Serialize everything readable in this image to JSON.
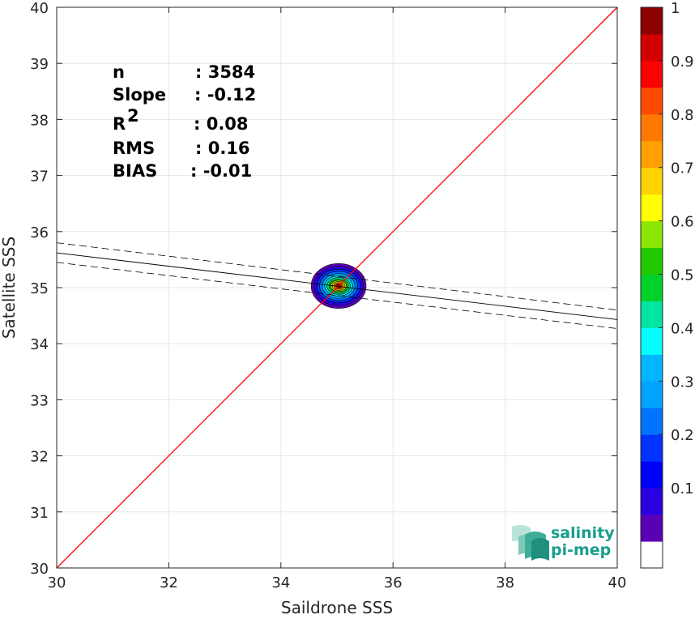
{
  "chart_data": {
    "type": "scatter",
    "xlabel": "Saildrone SSS",
    "ylabel": "Satellite SSS",
    "xlim": [
      30,
      40
    ],
    "ylim": [
      30,
      40
    ],
    "xticks": [
      "30",
      "32",
      "34",
      "36",
      "38",
      "40"
    ],
    "yticks": [
      "30",
      "31",
      "32",
      "33",
      "34",
      "35",
      "36",
      "37",
      "38",
      "39",
      "40"
    ],
    "grid": true,
    "stats": [
      {
        "label": "n",
        "value": ": 3584"
      },
      {
        "label": "Slope",
        "value": ": -0.12"
      },
      {
        "label": "R",
        "sup": "2",
        "value": ": 0.08"
      },
      {
        "label": "RMS",
        "value": ": 0.16"
      },
      {
        "label": "BIAS",
        "value": ": -0.01"
      }
    ],
    "identity_line": {
      "x": [
        30,
        40
      ],
      "y": [
        30,
        40
      ],
      "color": "#ff0000"
    },
    "regression_line": {
      "x": [
        30,
        40
      ],
      "y": [
        35.62,
        34.43
      ],
      "color": "#000000"
    },
    "confidence_upper": {
      "x": [
        30,
        40
      ],
      "y": [
        35.8,
        34.6
      ]
    },
    "confidence_lower": {
      "x": [
        30,
        40
      ],
      "y": [
        35.45,
        34.27
      ]
    },
    "density": {
      "center": [
        35.03,
        35.03
      ],
      "levels": [
        {
          "rx": 0.49,
          "ry": 0.4,
          "color": "#5a00b5"
        },
        {
          "rx": 0.44,
          "ry": 0.35,
          "color": "#2b00e0"
        },
        {
          "rx": 0.39,
          "ry": 0.3,
          "color": "#0033ff"
        },
        {
          "rx": 0.34,
          "ry": 0.26,
          "color": "#0073ff"
        },
        {
          "rx": 0.29,
          "ry": 0.22,
          "color": "#00b7ff"
        },
        {
          "rx": 0.25,
          "ry": 0.18,
          "color": "#00e4e0"
        },
        {
          "rx": 0.21,
          "ry": 0.15,
          "color": "#00d48a"
        },
        {
          "rx": 0.17,
          "ry": 0.12,
          "color": "#21c800"
        },
        {
          "rx": 0.14,
          "ry": 0.1,
          "color": "#b4e600"
        },
        {
          "rx": 0.11,
          "ry": 0.08,
          "color": "#ffd200"
        },
        {
          "rx": 0.08,
          "ry": 0.06,
          "color": "#ff6a00"
        },
        {
          "rx": 0.05,
          "ry": 0.04,
          "color": "#e10000"
        },
        {
          "rx": 0.025,
          "ry": 0.02,
          "color": "#8b0000"
        }
      ]
    },
    "colorbar": {
      "ticks": [
        "0.1",
        "0.2",
        "0.3",
        "0.4",
        "0.5",
        "0.6",
        "0.7",
        "0.8",
        "0.9",
        "1"
      ],
      "colors": [
        "#ffffff",
        "#5a00b5",
        "#2b00e0",
        "#0000ff",
        "#0033ff",
        "#0073ff",
        "#00a3ff",
        "#00b7ff",
        "#00ffff",
        "#00e6a0",
        "#00d22a",
        "#21c800",
        "#8ce600",
        "#ffff00",
        "#ffd200",
        "#ffa000",
        "#ff7800",
        "#ff4b00",
        "#ff0000",
        "#d20000",
        "#8b0000"
      ]
    }
  },
  "logo": {
    "line1": "salinity",
    "line2": "pi-mep",
    "color": "#1a9e8c"
  }
}
